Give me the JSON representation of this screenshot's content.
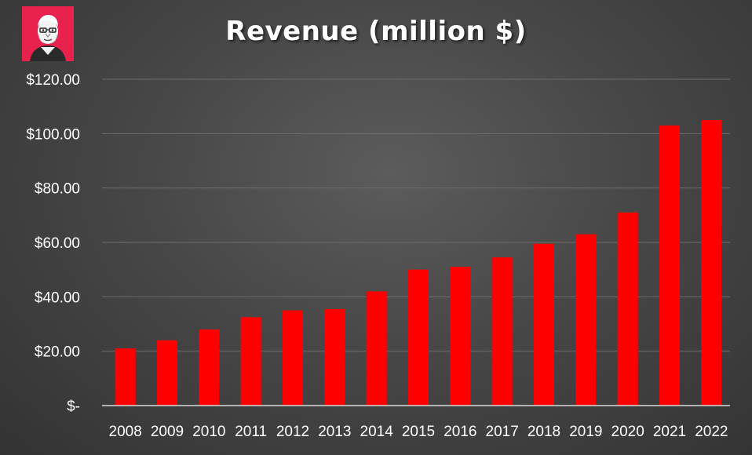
{
  "chart_data": {
    "type": "bar",
    "title": "Revenue (million $)",
    "xlabel": "",
    "ylabel": "",
    "categories": [
      "2008",
      "2009",
      "2010",
      "2011",
      "2012",
      "2013",
      "2014",
      "2015",
      "2016",
      "2017",
      "2018",
      "2019",
      "2020",
      "2021",
      "2022"
    ],
    "values": [
      21,
      24,
      28,
      32.5,
      35,
      35.5,
      42,
      50,
      51,
      54.5,
      59.5,
      63,
      71,
      103,
      105
    ],
    "ylim": [
      0,
      120
    ],
    "yticks": [
      0,
      20,
      40,
      60,
      80,
      100,
      120
    ],
    "ytick_labels": [
      "$-",
      "$20.00",
      "$40.00",
      "$60.00",
      "$80.00",
      "$100.00",
      "$120.00"
    ],
    "grid": true,
    "legend": "none",
    "bar_color": "#ff0000",
    "background_color": "#4a4a4a",
    "text_color": "#ffffff"
  },
  "logo": {
    "icon": "portrait-logo-icon",
    "background_color": "#e8214d"
  }
}
